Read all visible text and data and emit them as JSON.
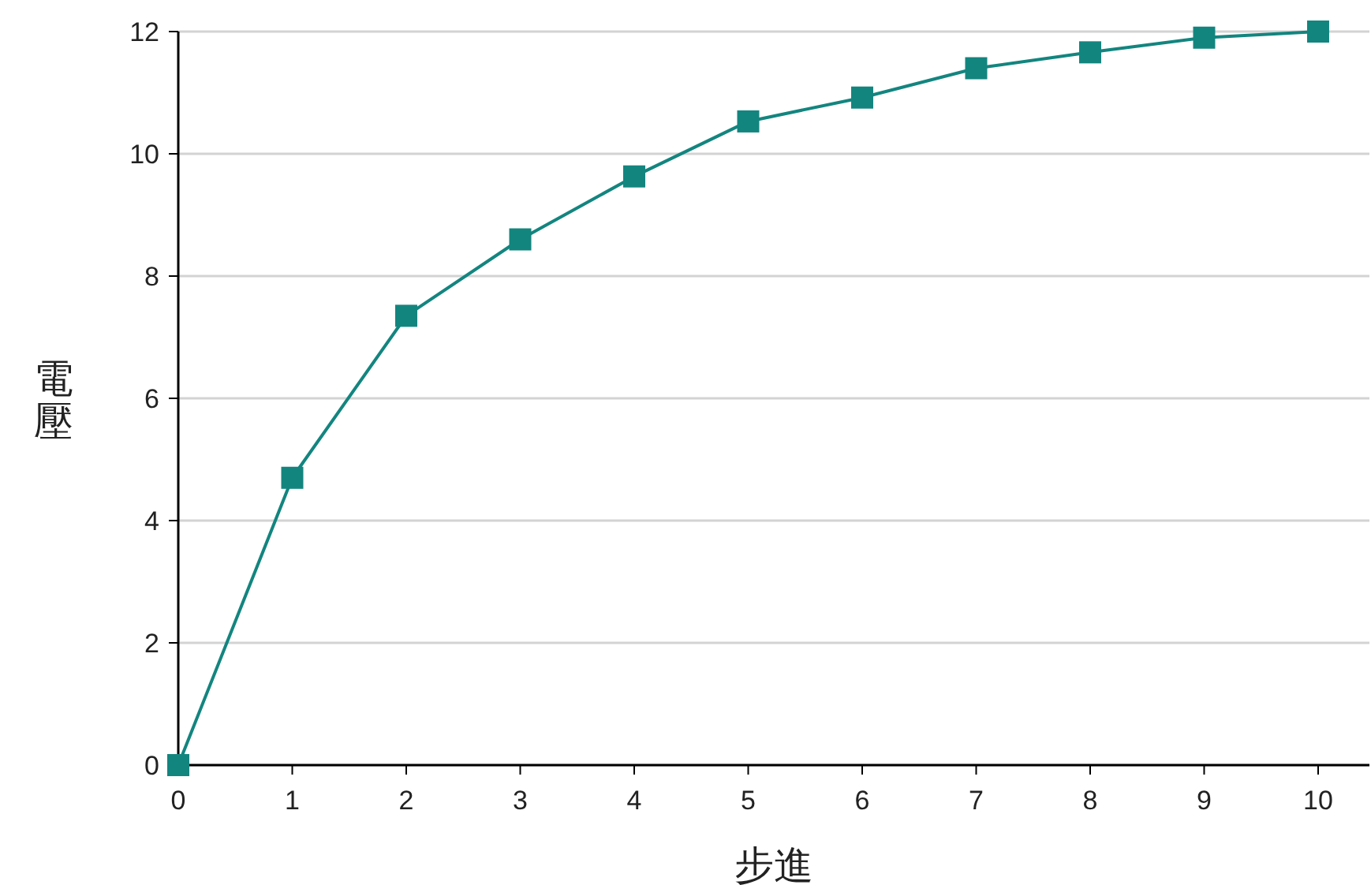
{
  "chart_data": {
    "type": "line",
    "xlabel": "步進",
    "ylabel": "電壓",
    "x": [
      0,
      1,
      2,
      3,
      4,
      5,
      6,
      7,
      8,
      9,
      10
    ],
    "series": [
      {
        "color": "#13857f",
        "values": [
          0,
          4.7,
          7.35,
          8.6,
          9.63,
          10.53,
          10.92,
          11.4,
          11.66,
          11.9,
          12.0
        ]
      }
    ],
    "xlim": [
      0,
      10.45
    ],
    "xticks": [
      0,
      1,
      2,
      3,
      4,
      5,
      6,
      7,
      8,
      9,
      10
    ],
    "ylim": [
      0,
      12
    ],
    "yticks": [
      0,
      2,
      4,
      6,
      8,
      10,
      12
    ],
    "grid": "y",
    "marker": "square",
    "line_style": "solid"
  }
}
